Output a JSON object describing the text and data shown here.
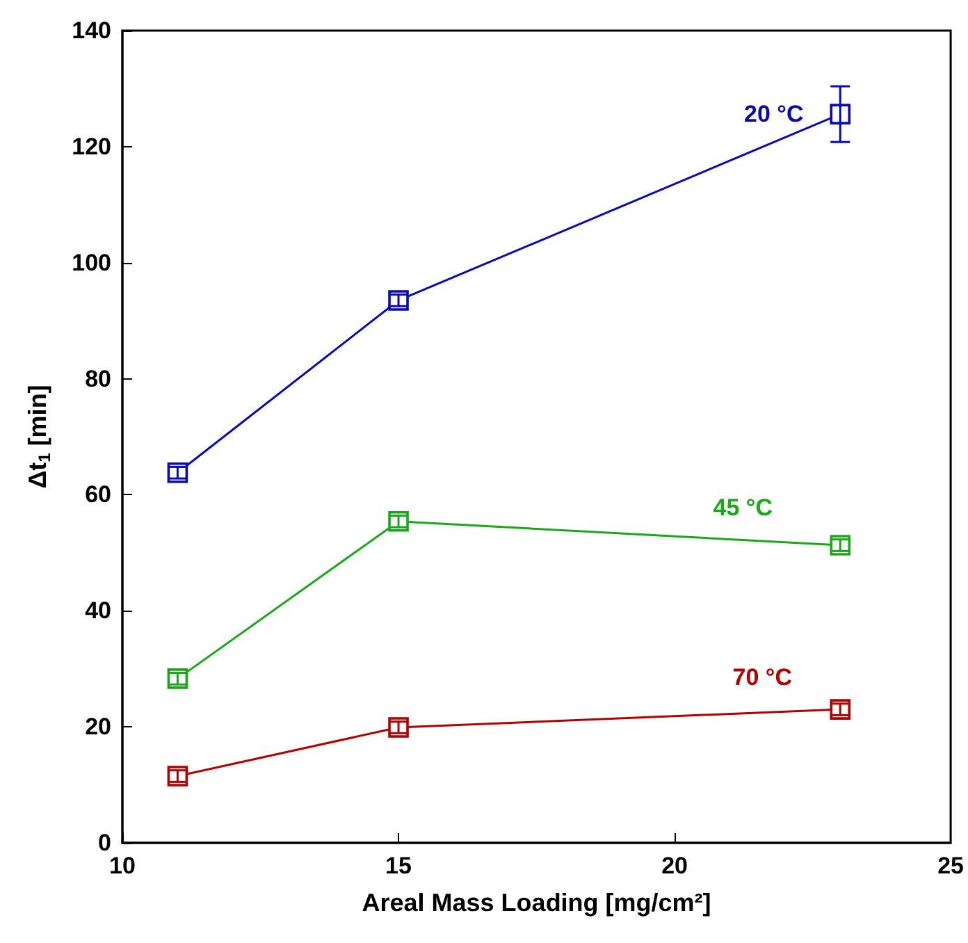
{
  "chart_data": {
    "type": "line",
    "xlabel": "Areal Mass Loading [mg/cm²]",
    "ylabel": "Δt$_{1}$ [min]",
    "x": [
      11,
      15,
      23
    ],
    "series": [
      {
        "name": "20 °C",
        "color": "#0a0ab4",
        "values": [
          63.8,
          93.5,
          125.6
        ],
        "errors": [
          1,
          1,
          4.8
        ]
      },
      {
        "name": "45 °C",
        "color": "#1aa81a",
        "values": [
          28.3,
          55.4,
          51.3
        ],
        "errors": [
          1,
          1,
          1
        ]
      },
      {
        "name": "70 °C",
        "color": "#b00000",
        "values": [
          11.5,
          19.9,
          23.0
        ],
        "errors": [
          1,
          1,
          1
        ]
      }
    ],
    "xlim": [
      10,
      25
    ],
    "xticks": [
      10,
      15,
      20,
      25
    ],
    "ylim": [
      0,
      140
    ],
    "yticks": [
      0,
      20,
      40,
      60,
      80,
      100,
      120,
      140
    ],
    "marker": "square",
    "line_style": "solid",
    "grid": false,
    "legend": false
  }
}
